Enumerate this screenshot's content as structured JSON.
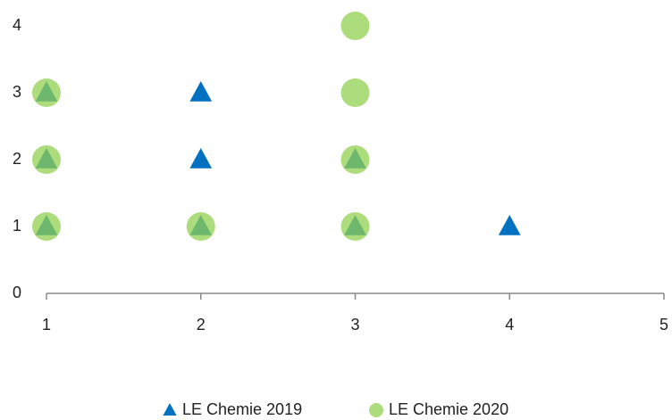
{
  "chart_data": {
    "type": "scatter",
    "series": [
      {
        "name": "LE Chemie 2019",
        "color": "#0070c0",
        "marker": "triangle",
        "x": [
          1,
          1,
          1,
          2,
          2,
          2,
          3,
          3,
          4
        ],
        "values": [
          1,
          2,
          3,
          1,
          2,
          3,
          1,
          2,
          1
        ]
      },
      {
        "name": "LE Chemie 2020",
        "color": "#92d050",
        "marker": "circle",
        "x": [
          1,
          1,
          1,
          2,
          3,
          3,
          3,
          3
        ],
        "values": [
          1,
          2,
          3,
          1,
          1,
          2,
          3,
          4
        ]
      }
    ],
    "xlim": [
      1,
      5
    ],
    "xticks": [
      1,
      2,
      3,
      4,
      5
    ],
    "ylim": [
      0,
      4
    ],
    "yticks": [
      0,
      1,
      2,
      3,
      4
    ],
    "grid": false,
    "legend": "bottom"
  }
}
